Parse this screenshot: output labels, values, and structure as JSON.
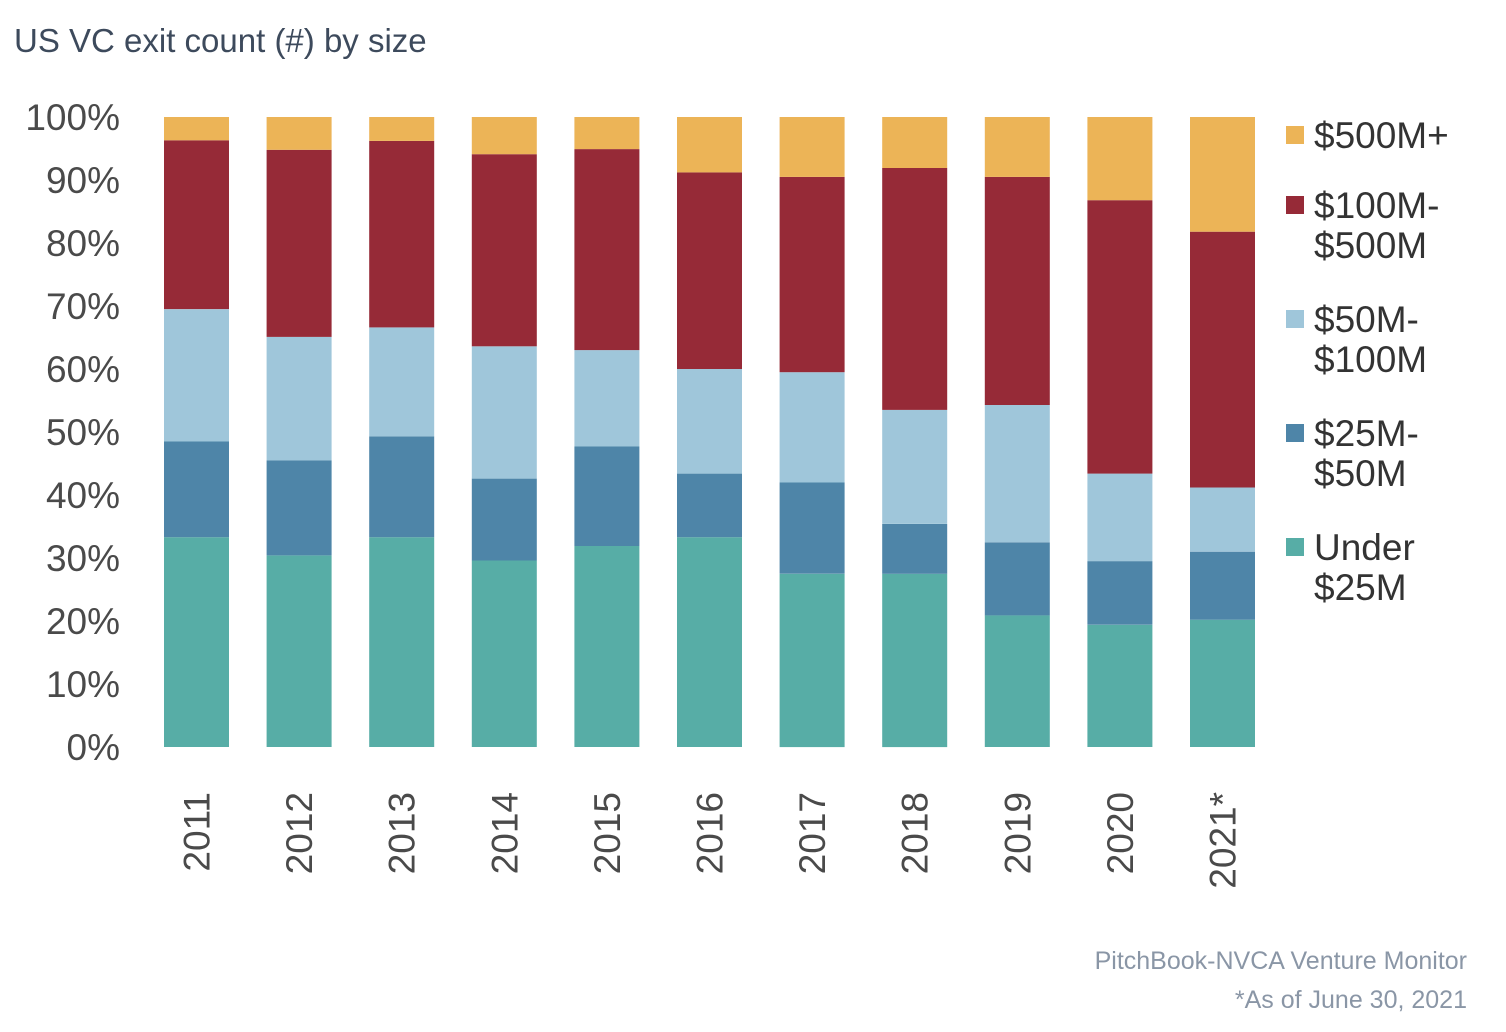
{
  "title": "US VC exit count (#) by size",
  "source": "PitchBook-NVCA Venture Monitor",
  "footnote": "*As of June 30, 2021",
  "chart_data": {
    "type": "bar",
    "stacked": true,
    "title": "US VC exit count (#) by size",
    "xlabel": "",
    "ylabel": "",
    "ylim": [
      0,
      100
    ],
    "y_ticks": [
      "0%",
      "10%",
      "20%",
      "30%",
      "40%",
      "50%",
      "60%",
      "70%",
      "80%",
      "90%",
      "100%"
    ],
    "categories": [
      "2011",
      "2012",
      "2013",
      "2014",
      "2015",
      "2016",
      "2017",
      "2018",
      "2019",
      "2020",
      "2021*"
    ],
    "legend_position": "right",
    "grid": false,
    "series": [
      {
        "name": "Under $25M",
        "label_lines": [
          "Under",
          "$25M"
        ],
        "color": "#57ada6",
        "values": [
          33.3,
          30.4,
          33.3,
          29.6,
          31.9,
          33.3,
          27.5,
          27.5,
          20.9,
          19.4,
          20.2
        ]
      },
      {
        "name": "$25M-$50M",
        "label_lines": [
          "$25M-",
          "$50M"
        ],
        "color": "#4e85a8",
        "values": [
          15.2,
          15.1,
          16.0,
          13.0,
          15.8,
          10.1,
          14.5,
          7.9,
          11.6,
          10.1,
          10.8
        ]
      },
      {
        "name": "$50M-$100M",
        "label_lines": [
          "$50M-",
          "$100M"
        ],
        "color": "#9fc6da",
        "values": [
          21.0,
          19.6,
          17.3,
          21.0,
          15.3,
          16.6,
          17.5,
          18.1,
          21.8,
          13.9,
          10.2
        ]
      },
      {
        "name": "$100M-$500M",
        "label_lines": [
          "$100M-",
          "$500M"
        ],
        "color": "#962a37",
        "values": [
          26.8,
          29.7,
          29.6,
          30.5,
          31.9,
          31.2,
          31.0,
          38.4,
          36.2,
          43.4,
          40.6
        ]
      },
      {
        "name": "$500M+",
        "label_lines": [
          "$500M+"
        ],
        "color": "#ecb457",
        "values": [
          3.7,
          5.2,
          3.8,
          5.9,
          5.1,
          8.8,
          9.5,
          8.1,
          9.5,
          13.2,
          18.2
        ]
      }
    ]
  }
}
